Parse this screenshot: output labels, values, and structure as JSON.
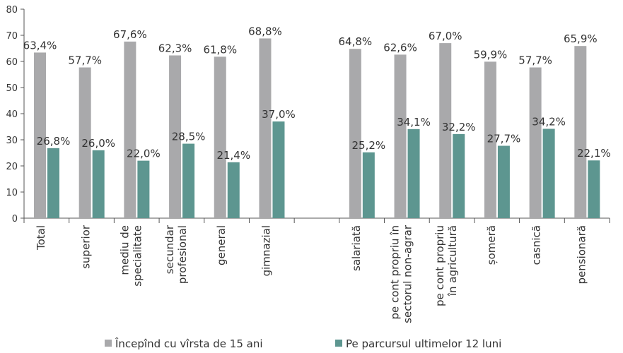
{
  "chart_data": {
    "type": "bar",
    "categories": [
      [
        "Total"
      ],
      [
        "superior"
      ],
      [
        "mediu de",
        "specialitate"
      ],
      [
        "secundar",
        "profesional"
      ],
      [
        "general"
      ],
      [
        "gimnazial"
      ],
      [
        ""
      ],
      [
        "salariată"
      ],
      [
        "pe cont propriu în",
        "sectorul non-agrar"
      ],
      [
        "pe cont propriu",
        "în agricultură"
      ],
      [
        "șomeră"
      ],
      [
        "casnică"
      ],
      [
        "pensionară"
      ]
    ],
    "series": [
      {
        "name": "Începînd cu vîrsta de 15 ani",
        "color": "#a9a9ab",
        "values": [
          63.4,
          57.7,
          67.6,
          62.3,
          61.8,
          68.8,
          null,
          64.8,
          62.6,
          67.0,
          59.9,
          57.7,
          65.9
        ],
        "labels": [
          "63,4%",
          "57,7%",
          "67,6%",
          "62,3%",
          "61,8%",
          "68,8%",
          "",
          "64,8%",
          "62,6%",
          "67,0%",
          "59,9%",
          "57,7%",
          "65,9%"
        ]
      },
      {
        "name": "Pe parcursul ultimelor 12 luni",
        "color": "#5d9690",
        "values": [
          26.8,
          26.0,
          22.0,
          28.5,
          21.4,
          37.0,
          null,
          25.2,
          34.1,
          32.2,
          27.7,
          34.2,
          22.1
        ],
        "labels": [
          "26,8%",
          "26,0%",
          "22,0%",
          "28,5%",
          "21,4%",
          "37,0%",
          "",
          "25,2%",
          "34,1%",
          "32,2%",
          "27,7%",
          "34,2%",
          "22,1%"
        ]
      }
    ],
    "y_ticks": [
      "0",
      "10",
      "20",
      "30",
      "40",
      "50",
      "60",
      "70",
      "80"
    ],
    "ylim": [
      0,
      80
    ],
    "grid": false,
    "legend_position": "bottom"
  }
}
